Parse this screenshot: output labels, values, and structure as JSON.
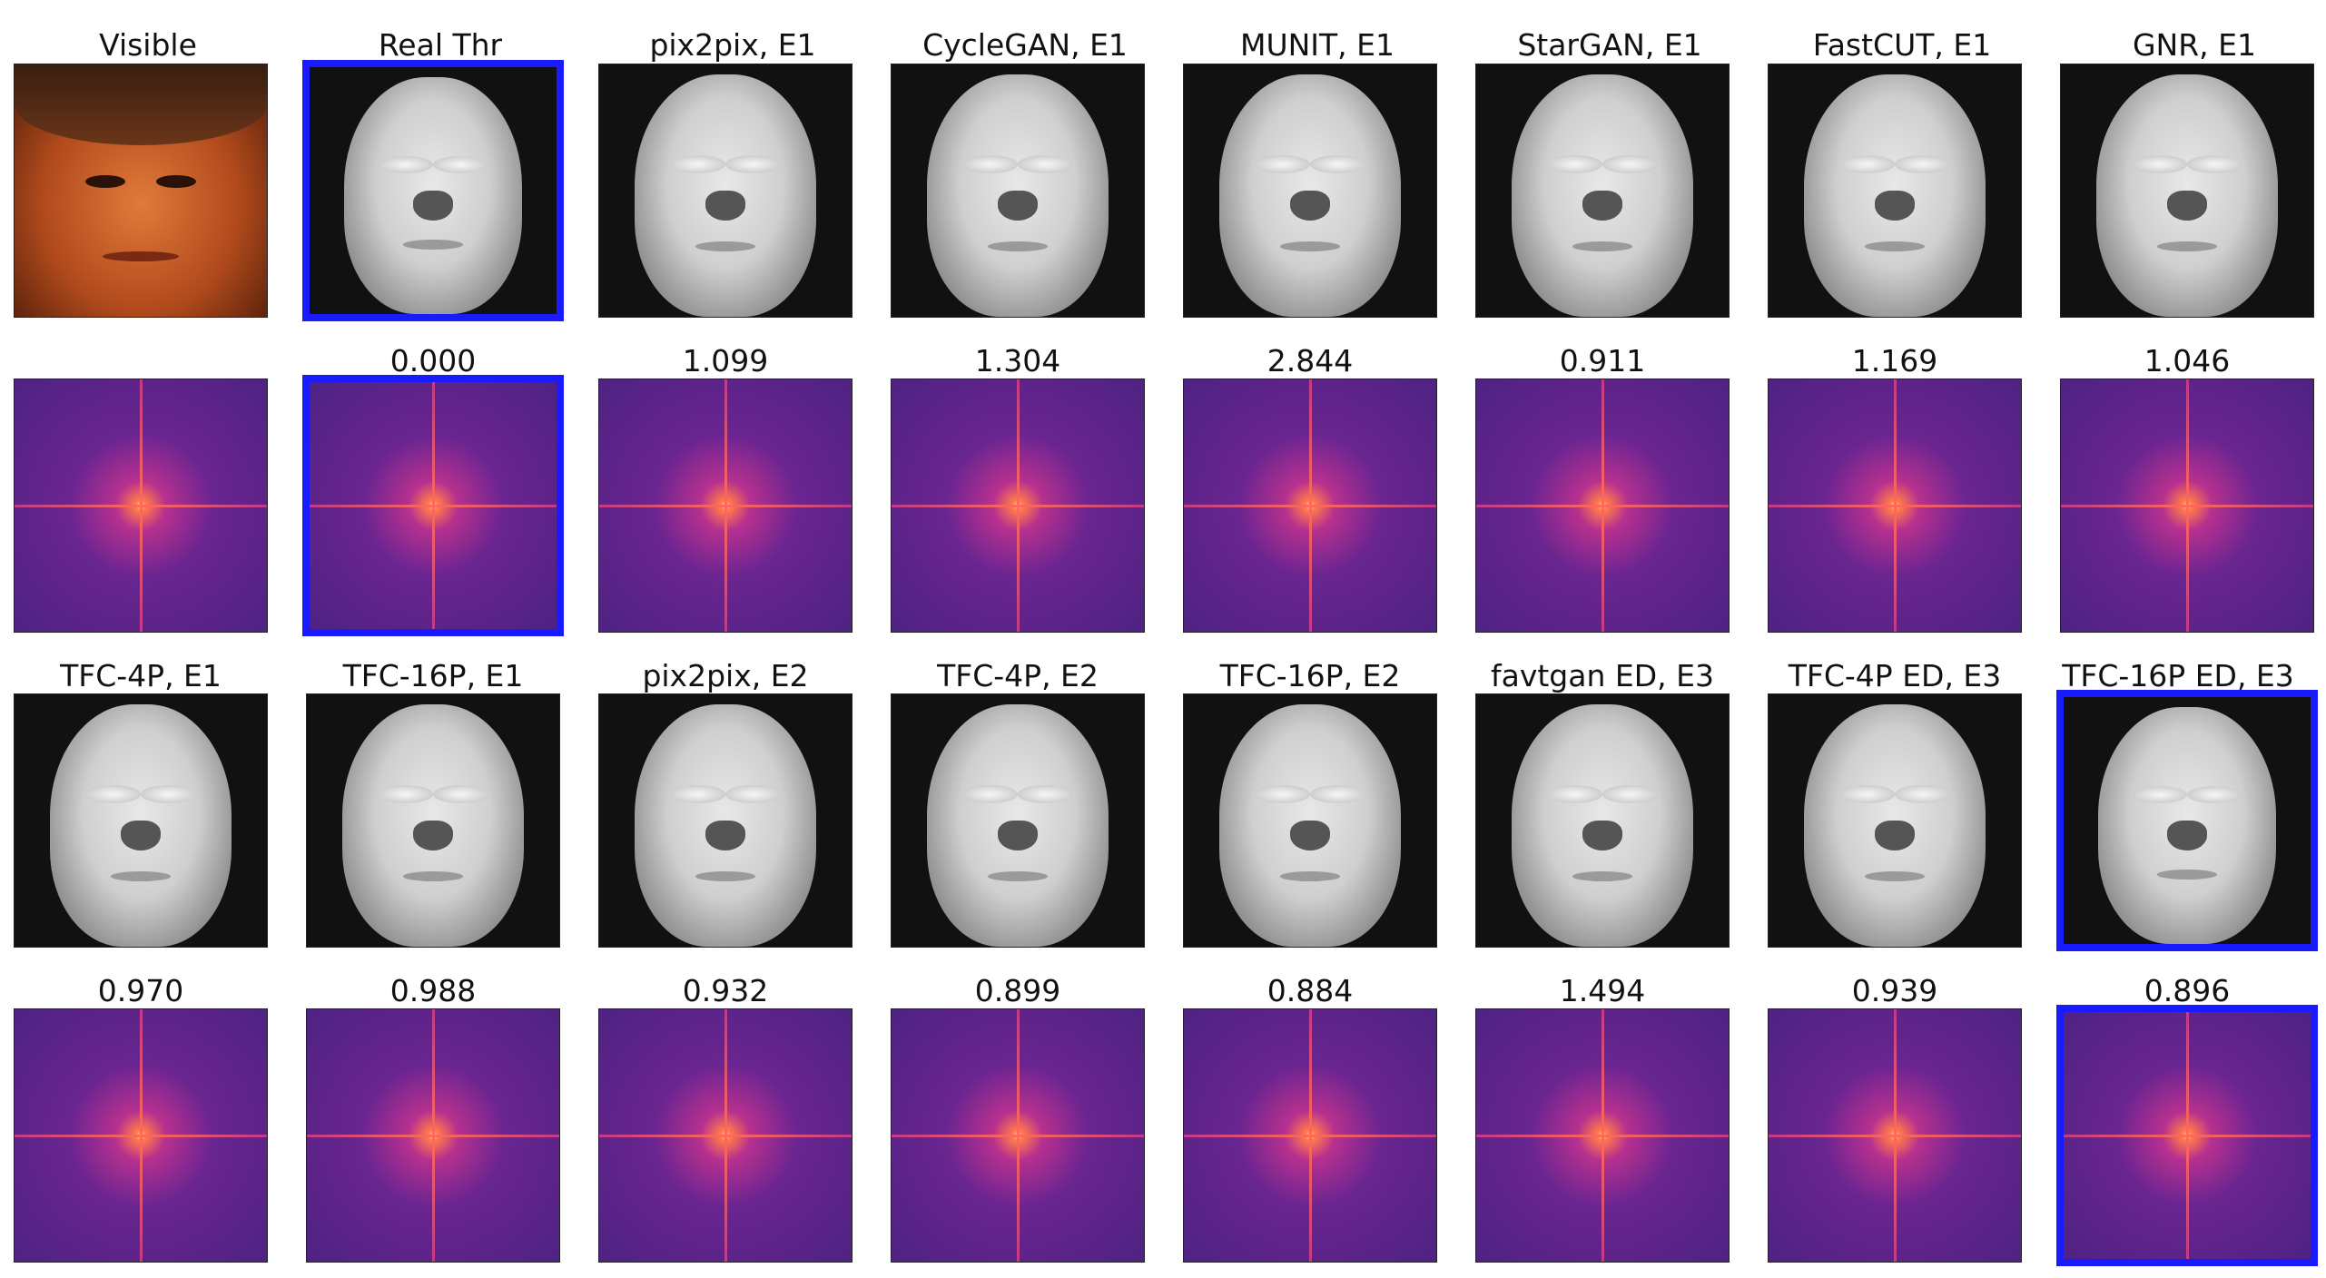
{
  "row1": {
    "labels": [
      "Visible",
      "Real Thr",
      "pix2pix, E1",
      "CycleGAN, E1",
      "MUNIT, E1",
      "StarGAN, E1",
      "FastCUT, E1",
      "GNR, E1"
    ]
  },
  "row2": {
    "scores": [
      "",
      "0.000",
      "1.099",
      "1.304",
      "2.844",
      "0.911",
      "1.169",
      "1.046"
    ]
  },
  "row3": {
    "labels": [
      "TFC-4P, E1",
      "TFC-16P, E1",
      "pix2pix, E2",
      "TFC-4P, E2",
      "TFC-16P, E2",
      "favtgan ED, E3",
      "TFC-4P ED, E3",
      "TFC-16P ED, E3"
    ]
  },
  "row4": {
    "scores": [
      "0.970",
      "0.988",
      "0.932",
      "0.899",
      "0.884",
      "1.494",
      "0.939",
      "0.896"
    ]
  },
  "highlight_color": "#1a1aff",
  "image_kinds": {
    "visible_photo": "visible-face-photo",
    "thermal": "thermal-face-image",
    "spectrum": "fourier-spectrum-image"
  }
}
